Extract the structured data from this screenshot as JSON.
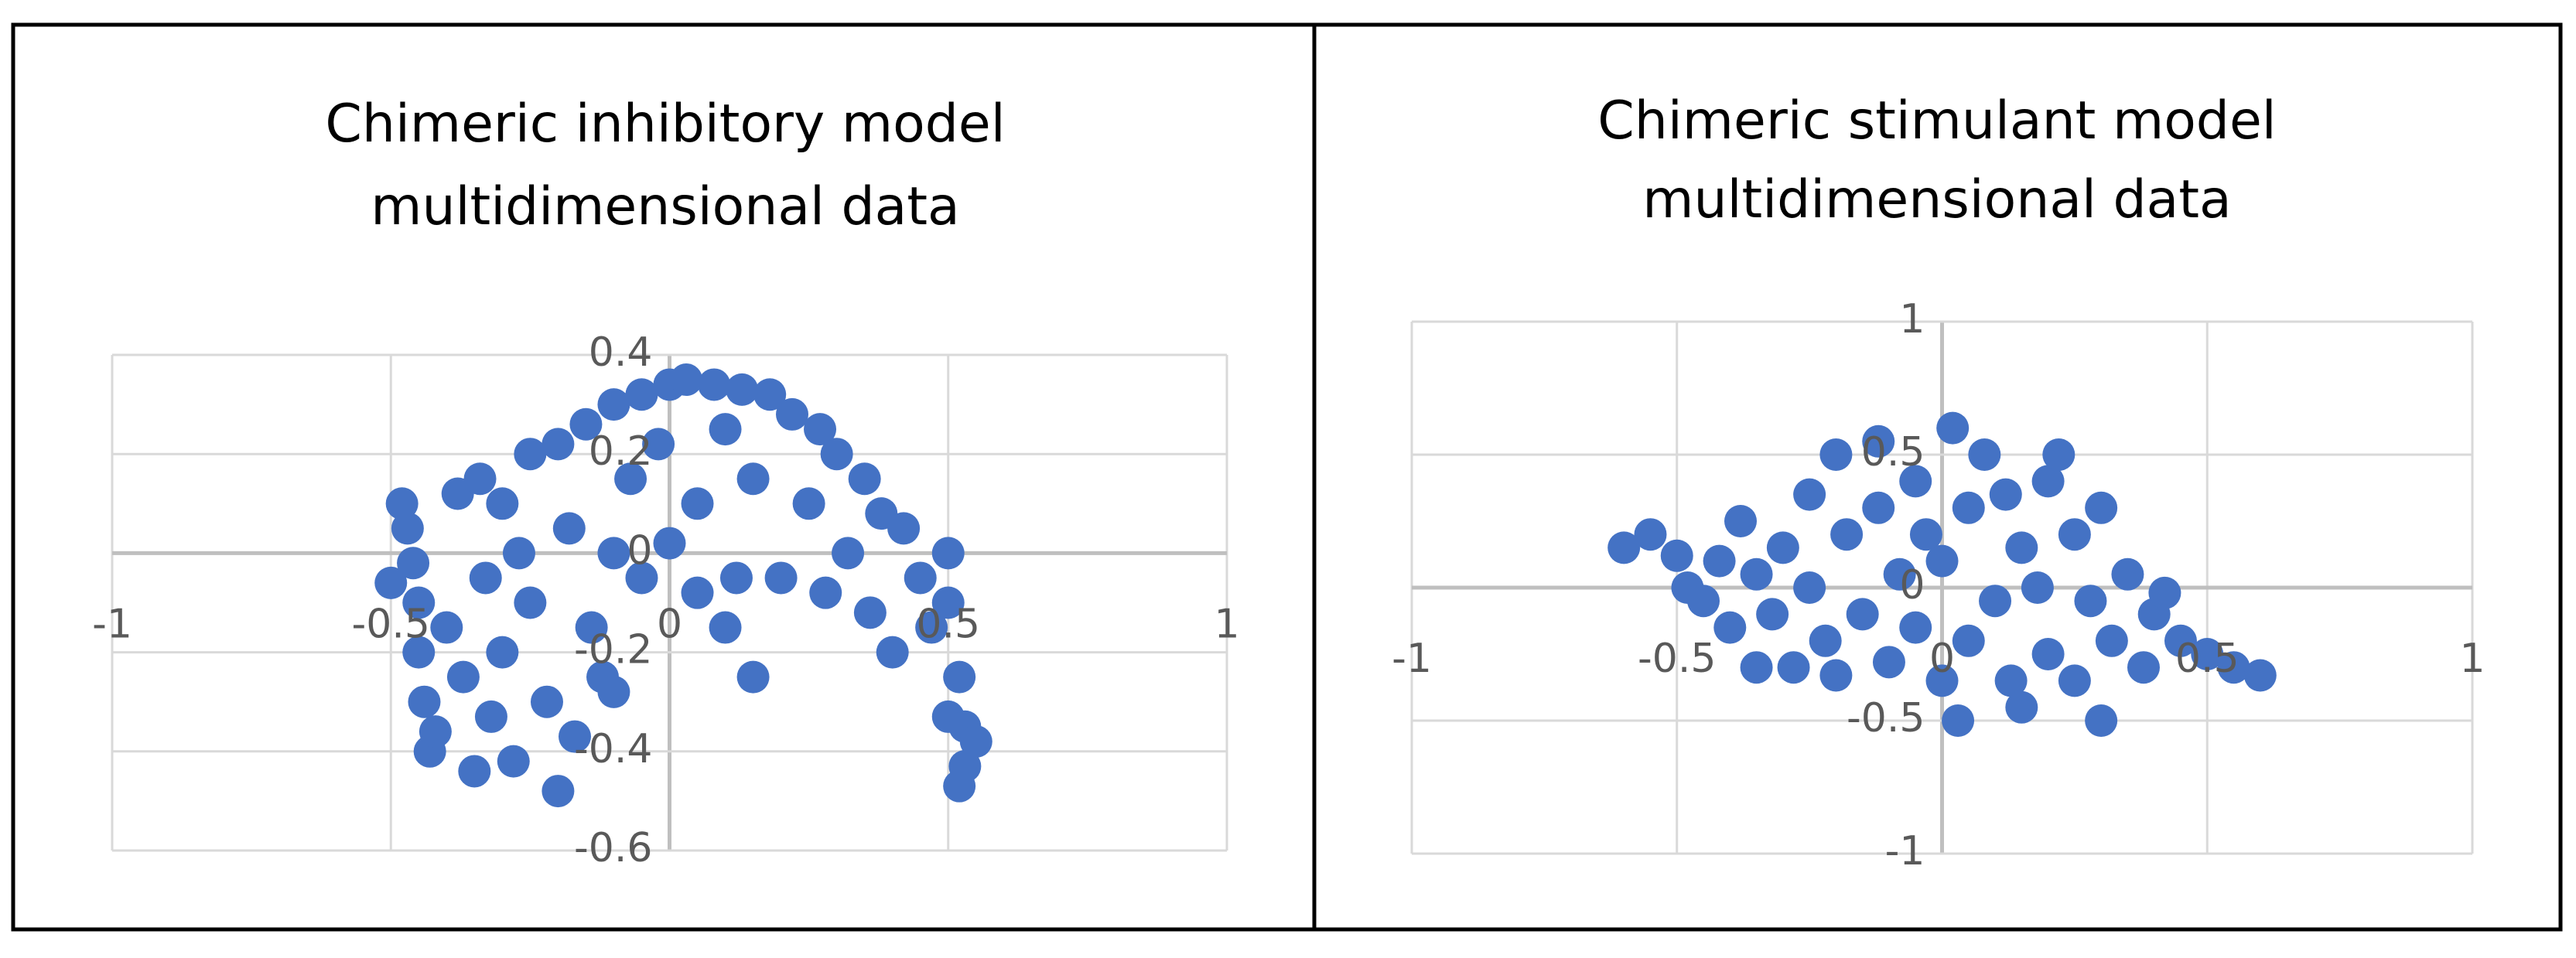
{
  "chart_data": [
    {
      "type": "scatter",
      "title": "Chimeric inhibitory model multidimensional data",
      "color": "#4472c4",
      "xlim": [
        -1,
        1
      ],
      "xticks": [
        -1,
        -0.5,
        0,
        0.5,
        1
      ],
      "ylim": [
        -0.6,
        0.4
      ],
      "yticks": [
        -0.6,
        -0.4,
        -0.2,
        0,
        0.2,
        0.4
      ],
      "grid": true,
      "x": [
        -0.5,
        -0.48,
        -0.47,
        -0.46,
        -0.45,
        -0.45,
        -0.44,
        -0.43,
        -0.42,
        -0.4,
        -0.38,
        -0.37,
        -0.35,
        -0.34,
        -0.33,
        -0.32,
        -0.3,
        -0.3,
        -0.28,
        -0.27,
        -0.25,
        -0.25,
        -0.22,
        -0.2,
        -0.2,
        -0.18,
        -0.17,
        -0.15,
        -0.14,
        -0.12,
        -0.1,
        -0.1,
        -0.1,
        -0.07,
        -0.05,
        -0.05,
        -0.02,
        0,
        0,
        0.03,
        0.05,
        0.05,
        0.08,
        0.1,
        0.1,
        0.12,
        0.13,
        0.15,
        0.15,
        0.18,
        0.2,
        0.22,
        0.25,
        0.27,
        0.28,
        0.3,
        0.32,
        0.35,
        0.36,
        0.38,
        0.4,
        0.42,
        0.45,
        0.47,
        0.5,
        0.5,
        0.52,
        0.5,
        0.53,
        0.55,
        0.53,
        0.52
      ],
      "y": [
        -0.06,
        0.1,
        0.05,
        -0.02,
        -0.1,
        -0.2,
        -0.3,
        -0.4,
        -0.36,
        -0.15,
        0.12,
        -0.25,
        -0.44,
        0.15,
        -0.05,
        -0.33,
        0.1,
        -0.2,
        -0.42,
        0.0,
        0.2,
        -0.1,
        -0.3,
        0.22,
        -0.48,
        0.05,
        -0.37,
        0.26,
        -0.15,
        -0.25,
        0.3,
        0.0,
        -0.28,
        0.15,
        0.32,
        -0.05,
        0.22,
        0.34,
        0.02,
        0.35,
        0.1,
        -0.08,
        0.34,
        0.25,
        -0.15,
        -0.05,
        0.33,
        0.15,
        -0.25,
        0.32,
        -0.05,
        0.28,
        0.1,
        0.25,
        -0.08,
        0.2,
        0.0,
        0.15,
        -0.12,
        0.08,
        -0.2,
        0.05,
        -0.05,
        -0.15,
        0.0,
        -0.1,
        -0.25,
        -0.33,
        -0.35,
        -0.38,
        -0.43,
        -0.47
      ]
    },
    {
      "type": "scatter",
      "title": "Chimeric stimulant model multidimensional data",
      "color": "#4472c4",
      "xlim": [
        -1,
        1
      ],
      "xticks": [
        -1,
        -0.5,
        0,
        0.5,
        1
      ],
      "ylim": [
        -1,
        1
      ],
      "yticks": [
        -1,
        -0.5,
        0,
        0.5,
        1
      ],
      "grid": true,
      "x": [
        -0.6,
        -0.55,
        -0.5,
        -0.48,
        -0.45,
        -0.42,
        -0.4,
        -0.38,
        -0.35,
        -0.35,
        -0.32,
        -0.3,
        -0.28,
        -0.25,
        -0.25,
        -0.22,
        -0.2,
        -0.2,
        -0.18,
        -0.15,
        -0.12,
        -0.12,
        -0.1,
        -0.08,
        -0.05,
        -0.05,
        -0.03,
        0,
        0,
        0.02,
        0.03,
        0.05,
        0.05,
        0.08,
        0.1,
        0.12,
        0.13,
        0.15,
        0.15,
        0.18,
        0.2,
        0.2,
        0.22,
        0.25,
        0.25,
        0.28,
        0.3,
        0.3,
        0.32,
        0.35,
        0.38,
        0.4,
        0.42,
        0.45,
        0.5,
        0.55,
        0.6
      ],
      "y": [
        0.15,
        0.2,
        0.12,
        0.0,
        -0.05,
        0.1,
        -0.15,
        0.25,
        0.05,
        -0.3,
        -0.1,
        0.15,
        -0.3,
        0.35,
        0.0,
        -0.2,
        0.5,
        -0.33,
        0.2,
        -0.1,
        0.55,
        0.3,
        -0.28,
        0.05,
        0.4,
        -0.15,
        0.2,
        -0.35,
        0.1,
        0.6,
        -0.5,
        0.3,
        -0.2,
        0.5,
        -0.05,
        0.35,
        -0.35,
        0.15,
        -0.45,
        0.0,
        0.4,
        -0.25,
        0.5,
        0.2,
        -0.35,
        -0.05,
        0.3,
        -0.5,
        -0.2,
        0.05,
        -0.3,
        -0.1,
        -0.02,
        -0.2,
        -0.25,
        -0.3,
        -0.33
      ]
    }
  ]
}
